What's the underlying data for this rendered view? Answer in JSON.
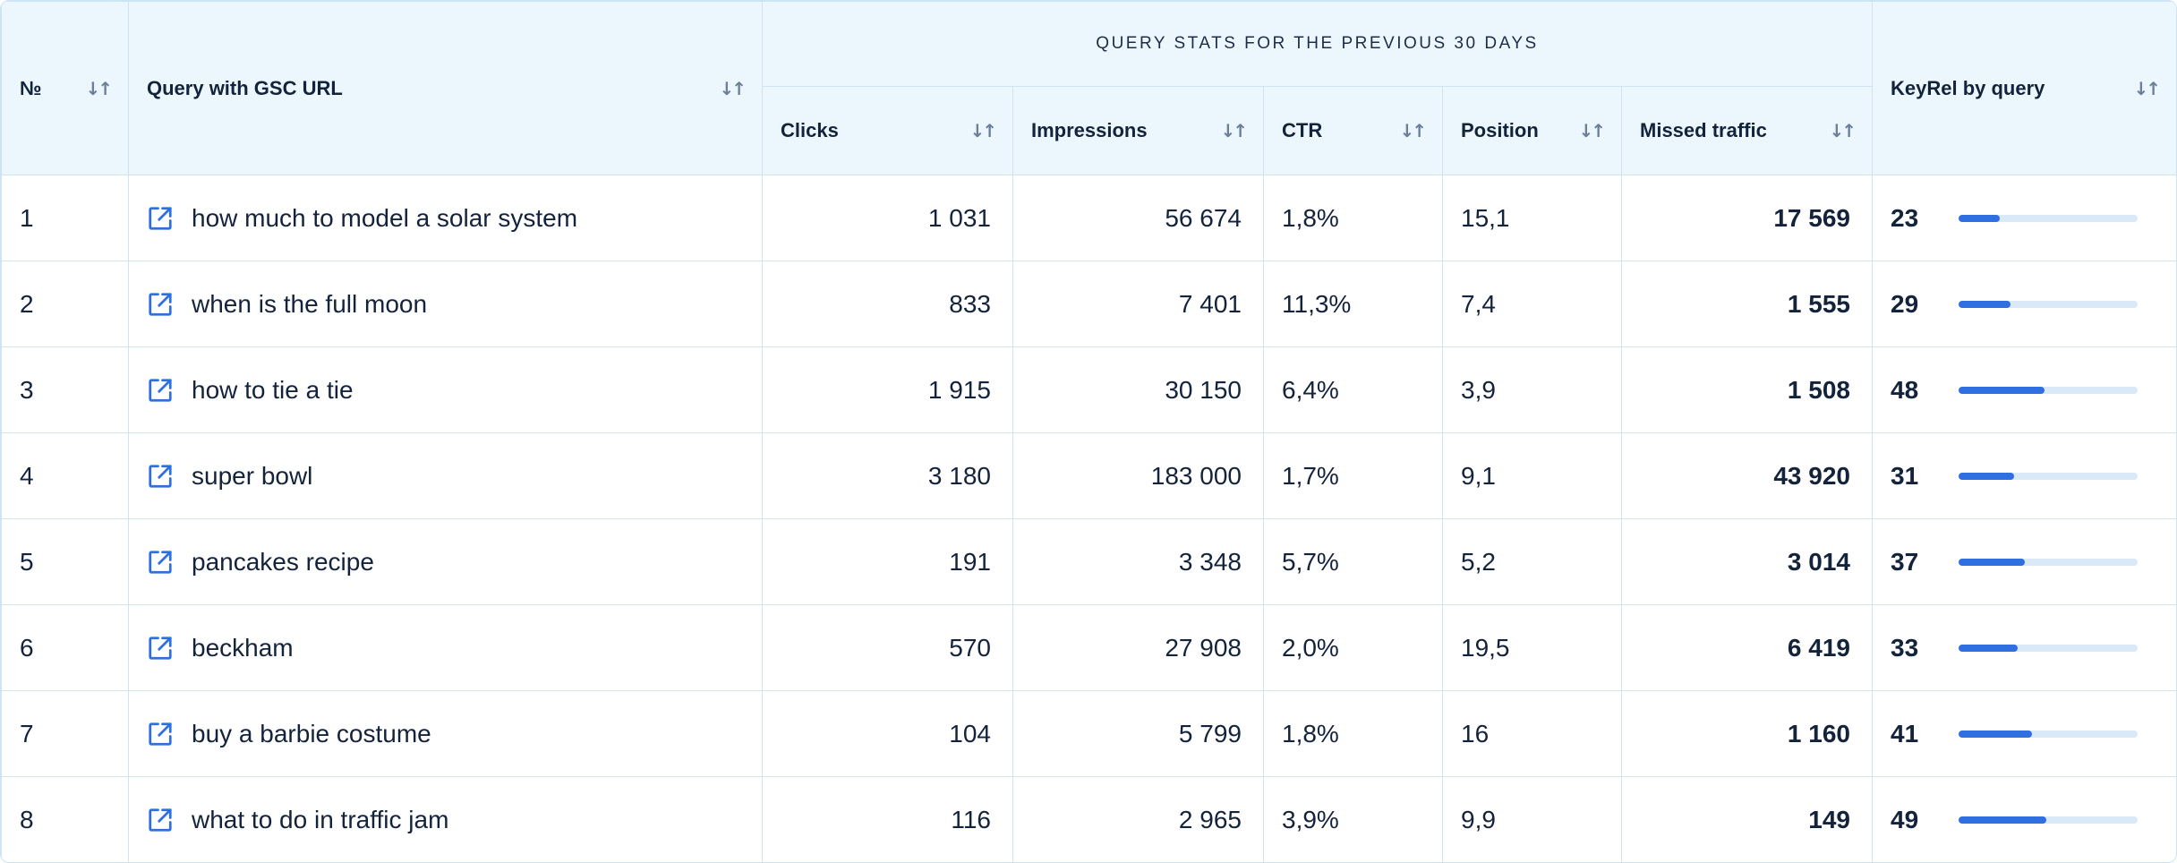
{
  "header": {
    "no": "№",
    "query": "Query with GSC URL",
    "group": "QUERY STATS FOR THE PREVIOUS 30 DAYS",
    "clicks": "Clicks",
    "impressions": "Impressions",
    "ctr": "CTR",
    "position": "Position",
    "missed": "Missed traffic",
    "keyrel": "KeyRel by query",
    "sort_glyph": "↓↑"
  },
  "colors": {
    "accent": "#2f6fe0",
    "header_bg": "#ecf7fd",
    "border": "#cfe3f6",
    "bar_track": "#d9e9f8"
  },
  "icons": {
    "external_link": "external-link-icon",
    "sort": "sort-arrows-icon"
  },
  "rows": [
    {
      "no": "1",
      "query": "how much to model a solar system",
      "clicks": "1 031",
      "impressions": "56 674",
      "ctr": "1,8%",
      "position": "15,1",
      "missed": "17 569",
      "keyrel": "23",
      "keyrel_value": 23
    },
    {
      "no": "2",
      "query": "when is the full moon",
      "clicks": "833",
      "impressions": "7 401",
      "ctr": "11,3%",
      "position": "7,4",
      "missed": "1 555",
      "keyrel": "29",
      "keyrel_value": 29
    },
    {
      "no": "3",
      "query": "how to tie a tie",
      "clicks": "1 915",
      "impressions": "30 150",
      "ctr": "6,4%",
      "position": "3,9",
      "missed": "1 508",
      "keyrel": "48",
      "keyrel_value": 48
    },
    {
      "no": "4",
      "query": "super bowl",
      "clicks": "3 180",
      "impressions": "183 000",
      "ctr": "1,7%",
      "position": "9,1",
      "missed": "43 920",
      "keyrel": "31",
      "keyrel_value": 31
    },
    {
      "no": "5",
      "query": "pancakes recipe",
      "clicks": "191",
      "impressions": "3 348",
      "ctr": "5,7%",
      "position": "5,2",
      "missed": "3 014",
      "keyrel": "37",
      "keyrel_value": 37
    },
    {
      "no": "6",
      "query": "beckham",
      "clicks": "570",
      "impressions": "27 908",
      "ctr": "2,0%",
      "position": "19,5",
      "missed": "6 419",
      "keyrel": "33",
      "keyrel_value": 33
    },
    {
      "no": "7",
      "query": "buy a barbie costume",
      "clicks": "104",
      "impressions": "5 799",
      "ctr": "1,8%",
      "position": "16",
      "missed": "1 160",
      "keyrel": "41",
      "keyrel_value": 41
    },
    {
      "no": "8",
      "query": "what to do in traffic jam",
      "clicks": "116",
      "impressions": "2 965",
      "ctr": "3,9%",
      "position": "9,9",
      "missed": "149",
      "keyrel": "49",
      "keyrel_value": 49
    }
  ]
}
